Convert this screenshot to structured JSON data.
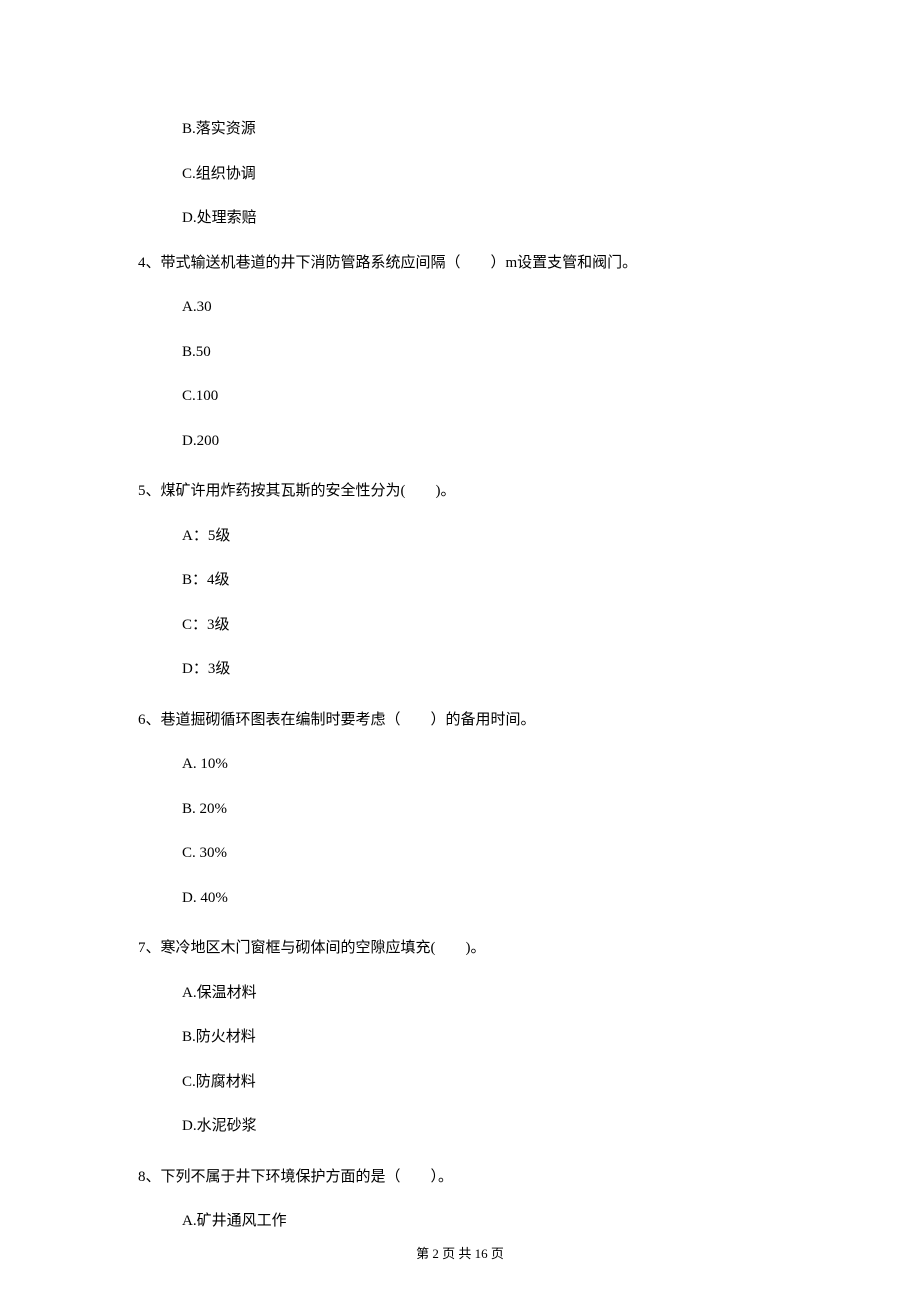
{
  "options_prefix": {
    "b": "B.落实资源",
    "c": "C.组织协调",
    "d": "D.处理索赔"
  },
  "questions": {
    "q4": {
      "text": "4、带式输送机巷道的井下消防管路系统应间隔（　　）m设置支管和阀门。",
      "a": "A.30",
      "b": "B.50",
      "c": "C.100",
      "d": "D.200"
    },
    "q5": {
      "text": "5、煤矿许用炸药按其瓦斯的安全性分为(　　)。",
      "a": "A：5级",
      "b": "B：4级",
      "c": "C：3级",
      "d": "D：3级"
    },
    "q6": {
      "text": "6、巷道掘砌循环图表在编制时要考虑（　　）的备用时间。",
      "a": "A. 10%",
      "b": "B. 20%",
      "c": "C. 30%",
      "d": "D. 40%"
    },
    "q7": {
      "text": "7、寒冷地区木门窗框与砌体间的空隙应填充(　　)。",
      "a": "A.保温材料",
      "b": "B.防火材料",
      "c": "C.防腐材料",
      "d": "D.水泥砂浆"
    },
    "q8": {
      "text": "8、下列不属于井下环境保护方面的是（　　）。",
      "a": "A.矿井通风工作"
    }
  },
  "footer": "第 2 页 共 16 页"
}
